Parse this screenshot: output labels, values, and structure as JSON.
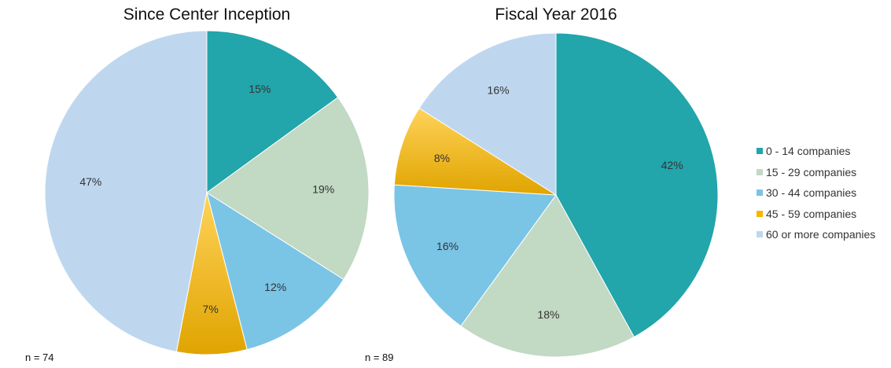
{
  "legend": {
    "items": [
      {
        "label": "0 - 14 companies",
        "color": "#22a5ab"
      },
      {
        "label": "15 - 29 companies",
        "color": "#c2d9c3"
      },
      {
        "label": "30 - 44 companies",
        "color": "#7ac4e6"
      },
      {
        "label": "45 - 59 companies",
        "color": "#f7b500"
      },
      {
        "label": "60 or more companies",
        "color": "#bfd7ee"
      }
    ]
  },
  "chart_data": [
    {
      "type": "pie",
      "title": "Since Center Inception",
      "note": "n = 74",
      "categories": [
        "0 - 14 companies",
        "15 - 29 companies",
        "30 - 44 companies",
        "45 - 59 companies",
        "60 or more companies"
      ],
      "values": [
        15,
        19,
        12,
        7,
        47
      ],
      "labels": [
        "15%",
        "19%",
        "12%",
        "7%",
        "47%"
      ],
      "colors": [
        "#22a5ab",
        "#c2d9c3",
        "#7ac4e6",
        "#f7b500",
        "#bfd7ee"
      ],
      "legend": "right"
    },
    {
      "type": "pie",
      "title": "Fiscal Year 2016",
      "note": "n = 89",
      "categories": [
        "0 - 14 companies",
        "15 - 29 companies",
        "30 - 44 companies",
        "45 - 59 companies",
        "60 or more companies"
      ],
      "values": [
        42,
        18,
        16,
        8,
        16
      ],
      "labels": [
        "42%",
        "18%",
        "16%",
        "8%",
        "16%"
      ],
      "colors": [
        "#22a5ab",
        "#c2d9c3",
        "#7ac4e6",
        "#f7b500",
        "#bfd7ee"
      ],
      "legend": "right"
    }
  ]
}
